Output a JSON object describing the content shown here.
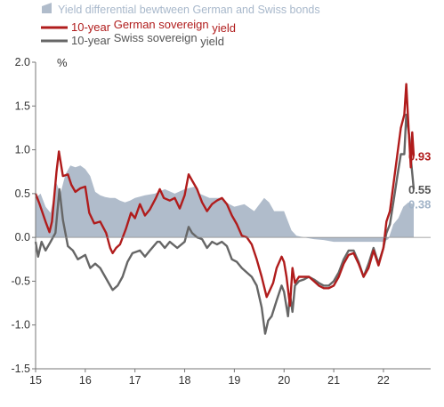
{
  "chart_data": {
    "type": "line",
    "unit_label": "%",
    "x_ticks": [
      "15",
      "16",
      "17",
      "18",
      "19",
      "20",
      "21",
      "22"
    ],
    "y_ticks": [
      "2.0",
      "1.5",
      "1.0",
      "0.5",
      "0.0",
      "-0.5",
      "-1.0",
      "-1.5"
    ],
    "ylim": [
      -1.5,
      2.0
    ],
    "xlim": [
      2015.0,
      2022.95
    ],
    "grid": false,
    "legend_position": "top-left",
    "legend": [
      {
        "label": "Yield differential bewtween German and Swiss bonds",
        "color": "#b0bccb",
        "kind": "area"
      },
      {
        "label_part1": "10-year ",
        "label_part2": "German sovereign",
        "label_part3": " yield",
        "color": "#b01c1c",
        "kind": "line"
      },
      {
        "label_part1": "10-year ",
        "label_part2": "Swiss sovereign",
        "label_part3": " yield",
        "color": "#666666",
        "kind": "line"
      }
    ],
    "end_labels": [
      {
        "text": "0.93",
        "value": 0.93,
        "color": "#b01c1c"
      },
      {
        "text": "0.55",
        "value": 0.55,
        "color": "#555555"
      },
      {
        "text": "0.38",
        "value": 0.38,
        "color": "#a2b4c8"
      }
    ],
    "series": [
      {
        "name": "10-year German sovereign yield",
        "color": "#b01c1c",
        "points": [
          [
            2015.0,
            0.5
          ],
          [
            2015.08,
            0.38
          ],
          [
            2015.2,
            0.18
          ],
          [
            2015.28,
            0.06
          ],
          [
            2015.33,
            0.18
          ],
          [
            2015.42,
            0.75
          ],
          [
            2015.47,
            0.98
          ],
          [
            2015.55,
            0.7
          ],
          [
            2015.65,
            0.72
          ],
          [
            2015.72,
            0.6
          ],
          [
            2015.8,
            0.52
          ],
          [
            2015.9,
            0.56
          ],
          [
            2016.0,
            0.58
          ],
          [
            2016.08,
            0.28
          ],
          [
            2016.18,
            0.16
          ],
          [
            2016.3,
            0.18
          ],
          [
            2016.42,
            0.05
          ],
          [
            2016.5,
            -0.12
          ],
          [
            2016.55,
            -0.18
          ],
          [
            2016.62,
            -0.12
          ],
          [
            2016.7,
            -0.08
          ],
          [
            2016.82,
            0.1
          ],
          [
            2016.92,
            0.28
          ],
          [
            2017.0,
            0.22
          ],
          [
            2017.1,
            0.38
          ],
          [
            2017.2,
            0.25
          ],
          [
            2017.3,
            0.32
          ],
          [
            2017.42,
            0.45
          ],
          [
            2017.5,
            0.55
          ],
          [
            2017.58,
            0.45
          ],
          [
            2017.7,
            0.42
          ],
          [
            2017.8,
            0.45
          ],
          [
            2017.9,
            0.33
          ],
          [
            2018.0,
            0.48
          ],
          [
            2018.08,
            0.72
          ],
          [
            2018.15,
            0.65
          ],
          [
            2018.25,
            0.55
          ],
          [
            2018.35,
            0.4
          ],
          [
            2018.45,
            0.3
          ],
          [
            2018.55,
            0.38
          ],
          [
            2018.65,
            0.42
          ],
          [
            2018.75,
            0.45
          ],
          [
            2018.85,
            0.38
          ],
          [
            2018.95,
            0.25
          ],
          [
            2019.05,
            0.15
          ],
          [
            2019.15,
            0.02
          ],
          [
            2019.25,
            0.0
          ],
          [
            2019.35,
            -0.08
          ],
          [
            2019.45,
            -0.25
          ],
          [
            2019.55,
            -0.45
          ],
          [
            2019.65,
            -0.68
          ],
          [
            2019.7,
            -0.62
          ],
          [
            2019.78,
            -0.52
          ],
          [
            2019.85,
            -0.35
          ],
          [
            2019.95,
            -0.22
          ],
          [
            2020.0,
            -0.28
          ],
          [
            2020.05,
            -0.45
          ],
          [
            2020.12,
            -0.78
          ],
          [
            2020.17,
            -0.35
          ],
          [
            2020.22,
            -0.52
          ],
          [
            2020.3,
            -0.45
          ],
          [
            2020.4,
            -0.45
          ],
          [
            2020.5,
            -0.45
          ],
          [
            2020.6,
            -0.5
          ],
          [
            2020.7,
            -0.55
          ],
          [
            2020.8,
            -0.58
          ],
          [
            2020.9,
            -0.58
          ],
          [
            2021.0,
            -0.55
          ],
          [
            2021.1,
            -0.45
          ],
          [
            2021.2,
            -0.3
          ],
          [
            2021.3,
            -0.2
          ],
          [
            2021.4,
            -0.18
          ],
          [
            2021.5,
            -0.3
          ],
          [
            2021.6,
            -0.45
          ],
          [
            2021.7,
            -0.35
          ],
          [
            2021.8,
            -0.15
          ],
          [
            2021.9,
            -0.32
          ],
          [
            2022.0,
            -0.12
          ],
          [
            2022.06,
            0.18
          ],
          [
            2022.13,
            0.3
          ],
          [
            2022.2,
            0.6
          ],
          [
            2022.28,
            0.95
          ],
          [
            2022.35,
            1.25
          ],
          [
            2022.42,
            1.4
          ],
          [
            2022.46,
            1.75
          ],
          [
            2022.5,
            1.3
          ],
          [
            2022.55,
            0.8
          ],
          [
            2022.58,
            1.2
          ],
          [
            2022.61,
            0.93
          ]
        ]
      },
      {
        "name": "10-year Swiss sovereign yield",
        "color": "#666666",
        "points": [
          [
            2015.0,
            -0.05
          ],
          [
            2015.05,
            -0.22
          ],
          [
            2015.12,
            -0.05
          ],
          [
            2015.2,
            -0.15
          ],
          [
            2015.3,
            -0.05
          ],
          [
            2015.4,
            0.05
          ],
          [
            2015.48,
            0.55
          ],
          [
            2015.55,
            0.2
          ],
          [
            2015.65,
            -0.1
          ],
          [
            2015.75,
            -0.15
          ],
          [
            2015.85,
            -0.25
          ],
          [
            2016.0,
            -0.2
          ],
          [
            2016.1,
            -0.35
          ],
          [
            2016.2,
            -0.3
          ],
          [
            2016.3,
            -0.35
          ],
          [
            2016.4,
            -0.45
          ],
          [
            2016.5,
            -0.55
          ],
          [
            2016.55,
            -0.6
          ],
          [
            2016.65,
            -0.55
          ],
          [
            2016.75,
            -0.45
          ],
          [
            2016.85,
            -0.28
          ],
          [
            2016.95,
            -0.18
          ],
          [
            2017.1,
            -0.15
          ],
          [
            2017.2,
            -0.22
          ],
          [
            2017.3,
            -0.15
          ],
          [
            2017.45,
            -0.05
          ],
          [
            2017.5,
            -0.05
          ],
          [
            2017.6,
            -0.12
          ],
          [
            2017.7,
            -0.05
          ],
          [
            2017.85,
            -0.12
          ],
          [
            2018.0,
            -0.05
          ],
          [
            2018.08,
            0.12
          ],
          [
            2018.15,
            0.05
          ],
          [
            2018.25,
            0.0
          ],
          [
            2018.35,
            -0.02
          ],
          [
            2018.45,
            -0.12
          ],
          [
            2018.55,
            -0.05
          ],
          [
            2018.65,
            -0.08
          ],
          [
            2018.75,
            -0.05
          ],
          [
            2018.85,
            -0.1
          ],
          [
            2018.95,
            -0.25
          ],
          [
            2019.05,
            -0.28
          ],
          [
            2019.15,
            -0.35
          ],
          [
            2019.25,
            -0.4
          ],
          [
            2019.35,
            -0.45
          ],
          [
            2019.45,
            -0.55
          ],
          [
            2019.55,
            -0.8
          ],
          [
            2019.62,
            -1.1
          ],
          [
            2019.68,
            -0.95
          ],
          [
            2019.75,
            -0.9
          ],
          [
            2019.85,
            -0.72
          ],
          [
            2019.95,
            -0.55
          ],
          [
            2020.0,
            -0.62
          ],
          [
            2020.08,
            -0.9
          ],
          [
            2020.12,
            -0.65
          ],
          [
            2020.17,
            -0.85
          ],
          [
            2020.22,
            -0.55
          ],
          [
            2020.3,
            -0.5
          ],
          [
            2020.4,
            -0.48
          ],
          [
            2020.5,
            -0.45
          ],
          [
            2020.6,
            -0.48
          ],
          [
            2020.7,
            -0.52
          ],
          [
            2020.8,
            -0.55
          ],
          [
            2020.9,
            -0.55
          ],
          [
            2021.0,
            -0.5
          ],
          [
            2021.1,
            -0.4
          ],
          [
            2021.2,
            -0.25
          ],
          [
            2021.3,
            -0.15
          ],
          [
            2021.4,
            -0.15
          ],
          [
            2021.5,
            -0.28
          ],
          [
            2021.6,
            -0.45
          ],
          [
            2021.7,
            -0.3
          ],
          [
            2021.8,
            -0.12
          ],
          [
            2021.9,
            -0.3
          ],
          [
            2022.0,
            -0.12
          ],
          [
            2022.06,
            0.05
          ],
          [
            2022.13,
            0.15
          ],
          [
            2022.2,
            0.4
          ],
          [
            2022.28,
            0.7
          ],
          [
            2022.35,
            0.95
          ],
          [
            2022.42,
            0.95
          ],
          [
            2022.46,
            1.4
          ],
          [
            2022.52,
            1.15
          ],
          [
            2022.56,
            0.85
          ],
          [
            2022.61,
            0.55
          ]
        ]
      },
      {
        "name": "Yield differential bewtween German and Swiss bonds",
        "color": "#b0bccb",
        "kind": "area",
        "points": [
          [
            2015.0,
            0.45
          ],
          [
            2015.1,
            0.5
          ],
          [
            2015.2,
            0.35
          ],
          [
            2015.3,
            0.28
          ],
          [
            2015.42,
            0.62
          ],
          [
            2015.5,
            0.5
          ],
          [
            2015.6,
            0.72
          ],
          [
            2015.7,
            0.82
          ],
          [
            2015.8,
            0.8
          ],
          [
            2015.9,
            0.82
          ],
          [
            2016.0,
            0.78
          ],
          [
            2016.1,
            0.7
          ],
          [
            2016.2,
            0.52
          ],
          [
            2016.3,
            0.48
          ],
          [
            2016.4,
            0.46
          ],
          [
            2016.5,
            0.45
          ],
          [
            2016.6,
            0.45
          ],
          [
            2016.7,
            0.42
          ],
          [
            2016.8,
            0.4
          ],
          [
            2016.9,
            0.42
          ],
          [
            2017.0,
            0.45
          ],
          [
            2017.2,
            0.48
          ],
          [
            2017.4,
            0.5
          ],
          [
            2017.6,
            0.55
          ],
          [
            2017.8,
            0.5
          ],
          [
            2018.0,
            0.55
          ],
          [
            2018.2,
            0.58
          ],
          [
            2018.3,
            0.5
          ],
          [
            2018.5,
            0.45
          ],
          [
            2018.7,
            0.45
          ],
          [
            2018.9,
            0.38
          ],
          [
            2019.0,
            0.35
          ],
          [
            2019.2,
            0.38
          ],
          [
            2019.4,
            0.3
          ],
          [
            2019.6,
            0.45
          ],
          [
            2019.7,
            0.4
          ],
          [
            2019.8,
            0.3
          ],
          [
            2019.9,
            0.3
          ],
          [
            2020.0,
            0.3
          ],
          [
            2020.15,
            0.08
          ],
          [
            2020.25,
            0.02
          ],
          [
            2020.4,
            0.0
          ],
          [
            2020.6,
            -0.02
          ],
          [
            2020.8,
            -0.03
          ],
          [
            2021.0,
            -0.05
          ],
          [
            2021.2,
            -0.05
          ],
          [
            2021.4,
            -0.05
          ],
          [
            2021.6,
            -0.05
          ],
          [
            2021.8,
            -0.05
          ],
          [
            2022.0,
            -0.05
          ],
          [
            2022.1,
            -0.02
          ],
          [
            2022.2,
            0.15
          ],
          [
            2022.3,
            0.22
          ],
          [
            2022.4,
            0.35
          ],
          [
            2022.5,
            0.4
          ],
          [
            2022.61,
            0.38
          ]
        ]
      }
    ]
  }
}
